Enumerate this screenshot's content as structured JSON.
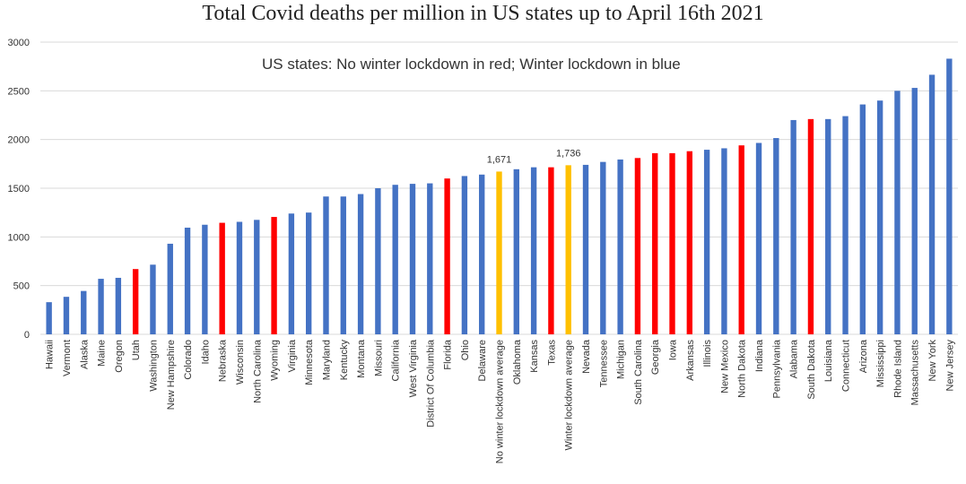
{
  "chart_data": {
    "type": "bar",
    "title": "Total Covid deaths per million in US states up to April 16th 2021",
    "annotation": "US states: No winter lockdown in red; Winter lockdown in blue",
    "xlabel": "",
    "ylabel": "",
    "ylim": [
      0,
      3000
    ],
    "yticks": [
      0,
      500,
      1000,
      1500,
      2000,
      2500,
      3000
    ],
    "grid": true,
    "colors": {
      "lockdown": "#4472C4",
      "no_lockdown": "#FF0000",
      "average": "#FFC000"
    },
    "categories": [
      "Hawaii",
      "Vermont",
      "Alaska",
      "Maine",
      "Oregon",
      "Utah",
      "Washington",
      "New Hampshire",
      "Colorado",
      "Idaho",
      "Nebraska",
      "Wisconsin",
      "North Carolina",
      "Wyoming",
      "Virginia",
      "Minnesota",
      "Maryland",
      "Kentucky",
      "Montana",
      "Missouri",
      "California",
      "West Virginia",
      "District Of Columbia",
      "Florida",
      "Ohio",
      "Delaware",
      "No winter lockdown average",
      "Oklahoma",
      "Kansas",
      "Texas",
      "Winter lockdown average",
      "Nevada",
      "Tennessee",
      "Michigan",
      "South Carolina",
      "Georgia",
      "Iowa",
      "Arkansas",
      "Illinois",
      "New Mexico",
      "North Dakota",
      "Indiana",
      "Pennsylvania",
      "Alabama",
      "South Dakota",
      "Louisiana",
      "Connecticut",
      "Arizona",
      "Mississippi",
      "Rhode Island",
      "Massachusetts",
      "New York",
      "New Jersey"
    ],
    "values": [
      330,
      385,
      445,
      570,
      580,
      670,
      715,
      930,
      1095,
      1125,
      1145,
      1155,
      1175,
      1205,
      1240,
      1250,
      1415,
      1415,
      1440,
      1500,
      1535,
      1545,
      1550,
      1600,
      1625,
      1640,
      1671,
      1695,
      1715,
      1715,
      1736,
      1740,
      1770,
      1795,
      1810,
      1860,
      1860,
      1880,
      1895,
      1910,
      1940,
      1965,
      2015,
      2200,
      2210,
      2210,
      2240,
      2360,
      2400,
      2500,
      2530,
      2665,
      2830
    ],
    "groups": [
      "lockdown",
      "lockdown",
      "lockdown",
      "lockdown",
      "lockdown",
      "no_lockdown",
      "lockdown",
      "lockdown",
      "lockdown",
      "lockdown",
      "no_lockdown",
      "lockdown",
      "lockdown",
      "no_lockdown",
      "lockdown",
      "lockdown",
      "lockdown",
      "lockdown",
      "lockdown",
      "lockdown",
      "lockdown",
      "lockdown",
      "lockdown",
      "no_lockdown",
      "lockdown",
      "lockdown",
      "average",
      "lockdown",
      "lockdown",
      "no_lockdown",
      "average",
      "lockdown",
      "lockdown",
      "lockdown",
      "no_lockdown",
      "no_lockdown",
      "no_lockdown",
      "no_lockdown",
      "lockdown",
      "lockdown",
      "no_lockdown",
      "lockdown",
      "lockdown",
      "lockdown",
      "no_lockdown",
      "lockdown",
      "lockdown",
      "lockdown",
      "lockdown",
      "lockdown",
      "lockdown",
      "lockdown",
      "lockdown"
    ],
    "data_labels": [
      {
        "category": "No winter lockdown average",
        "text": "1,671"
      },
      {
        "category": "Winter lockdown average",
        "text": "1,736"
      }
    ]
  }
}
